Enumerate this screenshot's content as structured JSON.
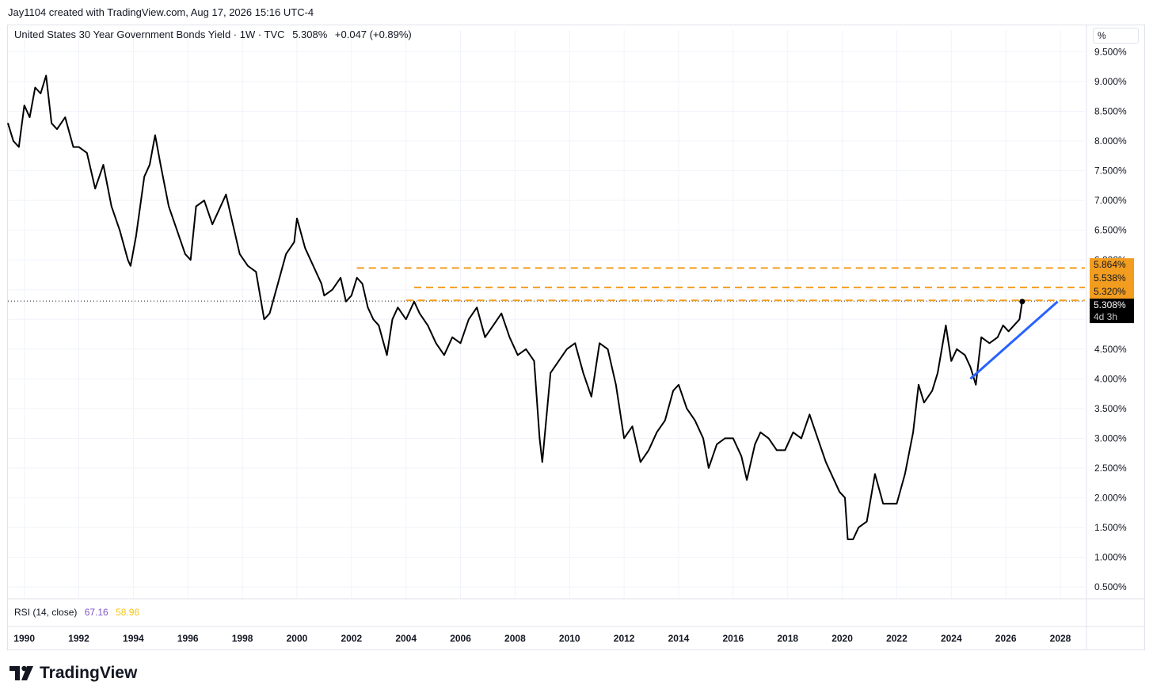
{
  "header": {
    "attribution": "Jay1104 created with TradingView.com, Aug 17, 2026 15:16 UTC-4"
  },
  "legend": {
    "symbol": "United States 30 Year Government Bonds Yield · 1W · TVC",
    "last": "5.308%",
    "change": "+0.047 (+0.89%)"
  },
  "axis": {
    "unit_button": "%"
  },
  "rsi": {
    "label": "RSI (14, close)",
    "value1": "67.16",
    "value2": "58.96",
    "value1_color": "#7e57c2",
    "value2_color": "#f5c518"
  },
  "last_price": {
    "value": "5.308%",
    "countdown": "4d 3h"
  },
  "levels": [
    {
      "label": "5.864%",
      "value": 5.864
    },
    {
      "label": "5.538%",
      "value": 5.538
    },
    {
      "label": "5.320%",
      "value": 5.32
    }
  ],
  "colors": {
    "line": "#000000",
    "level": "#f29d1f",
    "trend": "#2962ff",
    "grid": "#f0f3fa"
  },
  "brand": {
    "name": "TradingView"
  },
  "chart_data": {
    "type": "line",
    "title": "United States 30 Year Government Bonds Yield · 1W · TVC",
    "ylim": [
      0.3,
      9.6
    ],
    "xlim": [
      1989.4,
      2028.9
    ],
    "y_ticks": [
      "9.500%",
      "9.000%",
      "8.500%",
      "8.000%",
      "7.500%",
      "7.000%",
      "6.500%",
      "6.000%",
      "5.500%",
      "5.000%",
      "4.500%",
      "4.000%",
      "3.500%",
      "3.000%",
      "2.500%",
      "2.000%",
      "1.500%",
      "1.000%",
      "0.500%"
    ],
    "x_ticks": [
      "1990",
      "1992",
      "1994",
      "1996",
      "1998",
      "2000",
      "2002",
      "2004",
      "2006",
      "2008",
      "2010",
      "2012",
      "2014",
      "2016",
      "2018",
      "2020",
      "2022",
      "2024",
      "2026",
      "2028"
    ],
    "grid": true,
    "series": [
      {
        "x": [
          1989.4,
          1989.6,
          1989.8,
          1990.0,
          1990.2,
          1990.4,
          1990.6,
          1990.8,
          1991.0,
          1991.2,
          1991.5,
          1991.8,
          1992.0,
          1992.3,
          1992.6,
          1992.9,
          1993.2,
          1993.5,
          1993.8,
          1993.9,
          1994.1,
          1994.4,
          1994.6,
          1994.8,
          1995.0,
          1995.3,
          1995.6,
          1995.9,
          1996.1,
          1996.3,
          1996.6,
          1996.9,
          1997.1,
          1997.4,
          1997.7,
          1997.9,
          1998.2,
          1998.5,
          1998.8,
          1999.0,
          1999.3,
          1999.6,
          1999.9,
          2000.0,
          2000.3,
          2000.6,
          2000.9,
          2001.0,
          2001.3,
          2001.6,
          2001.8,
          2002.0,
          2002.2,
          2002.4,
          2002.6,
          2002.8,
          2003.0,
          2003.3,
          2003.5,
          2003.7,
          2004.0,
          2004.3,
          2004.5,
          2004.8,
          2005.1,
          2005.4,
          2005.7,
          2006.0,
          2006.3,
          2006.6,
          2006.9,
          2007.2,
          2007.5,
          2007.8,
          2008.1,
          2008.4,
          2008.7,
          2008.9,
          2009.0,
          2009.3,
          2009.6,
          2009.9,
          2010.2,
          2010.5,
          2010.8,
          2011.1,
          2011.4,
          2011.7,
          2012.0,
          2012.3,
          2012.6,
          2012.9,
          2013.2,
          2013.5,
          2013.8,
          2014.0,
          2014.3,
          2014.6,
          2014.9,
          2015.1,
          2015.4,
          2015.7,
          2016.0,
          2016.3,
          2016.5,
          2016.8,
          2017.0,
          2017.3,
          2017.6,
          2017.9,
          2018.2,
          2018.5,
          2018.8,
          2019.1,
          2019.4,
          2019.7,
          2019.9,
          2020.1,
          2020.2,
          2020.4,
          2020.6,
          2020.9,
          2021.2,
          2021.5,
          2021.8,
          2022.0,
          2022.3,
          2022.6,
          2022.8,
          2023.0,
          2023.3,
          2023.5,
          2023.8,
          2024.0,
          2024.2,
          2024.5,
          2024.7,
          2024.9,
          2025.1,
          2025.4,
          2025.7,
          2025.9,
          2026.1,
          2026.3,
          2026.5,
          2026.6
        ],
        "y": [
          8.3,
          8.0,
          7.9,
          8.6,
          8.4,
          8.9,
          8.8,
          9.1,
          8.3,
          8.2,
          8.4,
          7.9,
          7.9,
          7.8,
          7.2,
          7.6,
          6.9,
          6.5,
          6.0,
          5.9,
          6.4,
          7.4,
          7.6,
          8.1,
          7.6,
          6.9,
          6.5,
          6.1,
          6.0,
          6.9,
          7.0,
          6.6,
          6.8,
          7.1,
          6.5,
          6.1,
          5.9,
          5.8,
          5.0,
          5.1,
          5.6,
          6.1,
          6.3,
          6.7,
          6.2,
          5.9,
          5.6,
          5.4,
          5.5,
          5.7,
          5.3,
          5.4,
          5.7,
          5.6,
          5.2,
          5.0,
          4.9,
          4.4,
          5.0,
          5.2,
          5.0,
          5.3,
          5.1,
          4.9,
          4.6,
          4.4,
          4.7,
          4.6,
          5.0,
          5.2,
          4.7,
          4.9,
          5.1,
          4.7,
          4.4,
          4.5,
          4.3,
          3.0,
          2.6,
          4.1,
          4.3,
          4.5,
          4.6,
          4.1,
          3.7,
          4.6,
          4.5,
          3.9,
          3.0,
          3.2,
          2.6,
          2.8,
          3.1,
          3.3,
          3.8,
          3.9,
          3.5,
          3.3,
          3.0,
          2.5,
          2.9,
          3.0,
          3.0,
          2.7,
          2.3,
          2.9,
          3.1,
          3.0,
          2.8,
          2.8,
          3.1,
          3.0,
          3.4,
          3.0,
          2.6,
          2.3,
          2.1,
          2.0,
          1.3,
          1.3,
          1.5,
          1.6,
          2.4,
          1.9,
          1.9,
          1.9,
          2.4,
          3.1,
          3.9,
          3.6,
          3.8,
          4.1,
          4.9,
          4.3,
          4.5,
          4.4,
          4.2,
          3.9,
          4.7,
          4.6,
          4.7,
          4.9,
          4.8,
          4.9,
          5.0,
          5.3
        ]
      }
    ],
    "levels": [
      5.864,
      5.538,
      5.32
    ],
    "trendline": {
      "x": [
        2024.7,
        2027.9
      ],
      "y": [
        4.0,
        5.3
      ]
    },
    "last_value": 5.308
  }
}
